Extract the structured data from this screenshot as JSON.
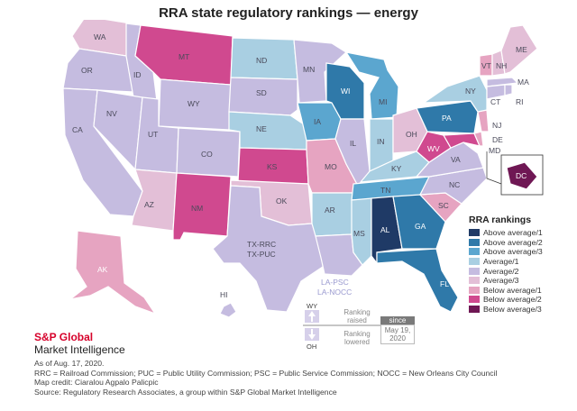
{
  "title": "RRA state regulatory rankings — energy",
  "legend": {
    "title": "RRA rankings",
    "items": [
      {
        "label": "Above average/1",
        "color": "#1f3a66"
      },
      {
        "label": "Above average/2",
        "color": "#2f79a9"
      },
      {
        "label": "Above average/3",
        "color": "#5ba6cf"
      },
      {
        "label": "Average/1",
        "color": "#a9cfe2"
      },
      {
        "label": "Average/2",
        "color": "#c5bce0"
      },
      {
        "label": "Average/3",
        "color": "#e3bfd7"
      },
      {
        "label": "Below average/1",
        "color": "#e6a4c1"
      },
      {
        "label": "Below average/2",
        "color": "#d0498f"
      },
      {
        "label": "Below average/3",
        "color": "#6f1754"
      }
    ]
  },
  "states": {
    "WA": "WA",
    "OR": "OR",
    "CA": "CA",
    "ID": "ID",
    "NV": "NV",
    "MT": "MT",
    "WY": "WY",
    "UT": "UT",
    "AZ": "AZ",
    "CO": "CO",
    "NM": "NM",
    "ND": "ND",
    "SD": "SD",
    "NE": "NE",
    "KS": "KS",
    "OK": "OK",
    "TX1": "TX-RRC",
    "TX2": "TX-PUC",
    "MN": "MN",
    "IA": "IA",
    "MO": "MO",
    "AR": "AR",
    "LA1": "LA-PSC",
    "LA2": "LA-NOCC",
    "WI": "WI",
    "IL": "IL",
    "MI": "MI",
    "IN": "IN",
    "OH": "OH",
    "KY": "KY",
    "TN": "TN",
    "MS": "MS",
    "AL": "AL",
    "GA": "GA",
    "FL": "FL",
    "SC": "SC",
    "NC": "NC",
    "VA": "VA",
    "WV": "WV",
    "PA": "PA",
    "NY": "NY",
    "VT": "VT",
    "NH": "NH",
    "ME": "ME",
    "MA": "MA",
    "CT": "CT",
    "RI": "RI",
    "NJ": "NJ",
    "DE": "DE",
    "MD": "MD",
    "AK": "AK",
    "HI": "HI",
    "DC": "DC"
  },
  "rank_key": {
    "wy": "WY",
    "oh": "OH",
    "raised": "Ranking raised",
    "lowered": "Ranking lowered",
    "since_head": "since",
    "since_date": "May 19, 2020"
  },
  "brand": {
    "top": "S&P Global",
    "bottom": "Market Intelligence"
  },
  "notes": {
    "line1": "As of Aug. 17, 2020.",
    "line2": "RRC = Railroad Commission; PUC = Public Utility Commission; PSC = Public Service Commission; NOCC = New Orleans City Council",
    "line3": "Map credit: Ciaralou Agpalo Palicpic",
    "line4": "Source: Regulatory Research Associates, a group within S&P Global Market Intelligence"
  }
}
